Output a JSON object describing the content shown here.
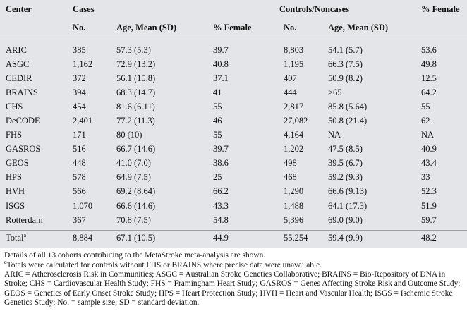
{
  "headers": {
    "center": "Center",
    "cases": "Cases",
    "controls": "Controls/Noncases",
    "female_right": "% Female",
    "no": "No.",
    "age_mean": "Age, Mean (SD)",
    "pct_female": "% Female",
    "no2": "No.",
    "age_mean2": "Age, Mean (SD)"
  },
  "rows": [
    {
      "center": "ARIC",
      "cases_no": "385",
      "cases_age": "57.3 (5.3)",
      "cases_female": "39.7",
      "controls_no": "8,803",
      "controls_age": "54.1 (5.7)",
      "controls_female": "53.6"
    },
    {
      "center": "ASGC",
      "cases_no": "1,162",
      "cases_age": "72.9 (13.2)",
      "cases_female": "40.8",
      "controls_no": "1,195",
      "controls_age": "66.3 (7.5)",
      "controls_female": "49.8"
    },
    {
      "center": "CEDIR",
      "cases_no": "372",
      "cases_age": "56.1 (15.8)",
      "cases_female": "37.1",
      "controls_no": "407",
      "controls_age": "50.9 (8.2)",
      "controls_female": "12.5"
    },
    {
      "center": "BRAINS",
      "cases_no": "394",
      "cases_age": "68.3 (14.7)",
      "cases_female": "41",
      "controls_no": "444",
      "controls_age": ">65",
      "controls_female": "64.2"
    },
    {
      "center": "CHS",
      "cases_no": "454",
      "cases_age": "81.6 (6.11)",
      "cases_female": "55",
      "controls_no": "2,817",
      "controls_age": "85.8 (5.64)",
      "controls_female": "55"
    },
    {
      "center": "DeCODE",
      "cases_no": "2,401",
      "cases_age": "77.2 (11.3)",
      "cases_female": "46",
      "controls_no": "27,082",
      "controls_age": "50.8 (21.4)",
      "controls_female": "62"
    },
    {
      "center": "FHS",
      "cases_no": "171",
      "cases_age": "80 (10)",
      "cases_female": "55",
      "controls_no": "4,164",
      "controls_age": "NA",
      "controls_female": "NA"
    },
    {
      "center": "GASROS",
      "cases_no": "516",
      "cases_age": "66.7 (14.6)",
      "cases_female": "39.7",
      "controls_no": "1,202",
      "controls_age": "47.5 (8.5)",
      "controls_female": "40.9"
    },
    {
      "center": "GEOS",
      "cases_no": "448",
      "cases_age": "41.0 (7.0)",
      "cases_female": "38.6",
      "controls_no": "498",
      "controls_age": "39.5 (6.7)",
      "controls_female": "43.4"
    },
    {
      "center": "HPS",
      "cases_no": "578",
      "cases_age": "64.9 (7.5)",
      "cases_female": "25",
      "controls_no": "468",
      "controls_age": "59.2 (9.3)",
      "controls_female": "33"
    },
    {
      "center": "HVH",
      "cases_no": "566",
      "cases_age": "69.2 (8.64)",
      "cases_female": "66.2",
      "controls_no": "1,290",
      "controls_age": "66.6 (9.13)",
      "controls_female": "52.3"
    },
    {
      "center": "ISGS",
      "cases_no": "1,070",
      "cases_age": "66.6 (14.6)",
      "cases_female": "43.3",
      "controls_no": "1,488",
      "controls_age": "64.1 (17.3)",
      "controls_female": "51.9"
    },
    {
      "center": "Rotterdam",
      "cases_no": "367",
      "cases_age": "70.8 (7.5)",
      "cases_female": "54.8",
      "controls_no": "5,396",
      "controls_age": "69.0 (9.0)",
      "controls_female": "59.7"
    }
  ],
  "total": {
    "center": "Total",
    "sup": "a",
    "cases_no": "8,884",
    "cases_age": "67.1 (10.5)",
    "cases_female": "44.9",
    "controls_no": "55,254",
    "controls_age": "59.4 (9.9)",
    "controls_female": "48.2"
  },
  "notes": {
    "details": "Details of all 13 cohorts contributing to the MetaStroke meta-analysis are shown.",
    "footnote_sup": "a",
    "footnote": "Totals were calculated for controls without FHS or BRAINS where precise data were unavailable.",
    "abbreviations": "ARIC = Atherosclerosis Risk in Communities; ASGC = Australian Stroke Genetics Collaborative; BRAINS = Bio-Repository of DNA in Stroke; CHS = Cardiovascular Health Study; FHS = Framingham Heart Study; GASROS = Genes Affecting Stroke Risk and Outcome Study; GEOS = Genetics of Early Onset Stroke Study; HPS = Heart Protection Study; HVH = Heart and Vascular Health; ISGS = Ischemic Stroke Genetics Study; No. = sample size; SD = standard deviation."
  }
}
